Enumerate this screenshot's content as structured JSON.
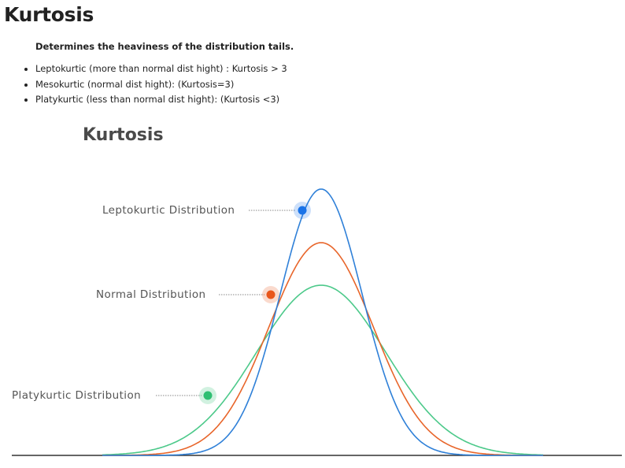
{
  "page": {
    "title": "Kurtosis",
    "subtitle": "Determines the heaviness of the distribution tails.",
    "bullets": [
      "Leptokurtic (more than normal dist hight) : Kurtosis > 3",
      "Mesokurtic (normal dist hight): (Kurtosis=3)",
      "Platykurtic (less than normal dist hight): (Kurtosis <3)"
    ]
  },
  "diagram": {
    "title": "Kurtosis",
    "curves": [
      {
        "label": "Leptokurtic Distribution",
        "color": "#2f80d8",
        "marker": "#1a73e8"
      },
      {
        "label": "Normal Distribution",
        "color": "#e8652a",
        "marker": "#e8561b"
      },
      {
        "label": "Platykurtic Distribution",
        "color": "#4cc98a",
        "marker": "#2fbf72"
      }
    ]
  }
}
